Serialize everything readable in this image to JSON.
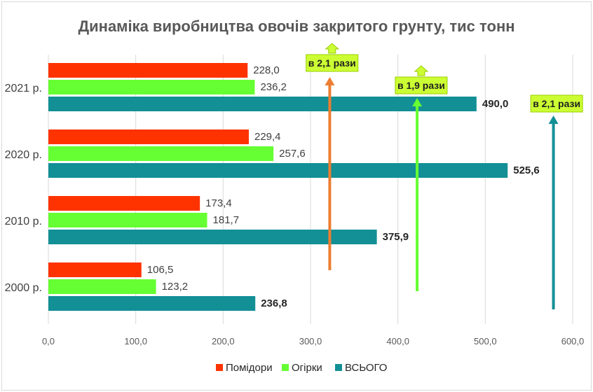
{
  "chart_data": {
    "type": "bar",
    "orientation": "horizontal",
    "title": "Динаміка виробництва овочів закритого грунту, тис тонн",
    "categories": [
      "2021 р.",
      "2020 р.",
      "2010 р.",
      "2000 р."
    ],
    "series": [
      {
        "name": "Помідори",
        "color": "#ff3300",
        "values": [
          228.0,
          229.4,
          173.4,
          106.5
        ],
        "labels": [
          "228,0",
          "229,4",
          "173,4",
          "106,5"
        ]
      },
      {
        "name": "Огірки",
        "color": "#66ff33",
        "values": [
          236.2,
          257.6,
          181.7,
          123.2
        ],
        "labels": [
          "236,2",
          "257,6",
          "181,7",
          "123,2"
        ]
      },
      {
        "name": "ВСЬОГО",
        "color": "#138f96",
        "values": [
          490.0,
          525.6,
          375.9,
          236.8
        ],
        "labels": [
          "490,0",
          "525,6",
          "375,9",
          "236,8"
        ]
      }
    ],
    "xlim": [
      0,
      600
    ],
    "xticks": [
      "0,0",
      "100,0",
      "200,0",
      "300,0",
      "400,0",
      "500,0",
      "600,0"
    ],
    "grid": true,
    "legend_position": "bottom",
    "annotations": [
      {
        "text": "в 2,1 рази",
        "series": "Помідори",
        "color": "#ed7d31",
        "x": 322,
        "box_x": 295
      },
      {
        "text": "в 1,9 рази",
        "series": "Огірки",
        "color": "#66ff33",
        "x": 422,
        "box_x": 397
      },
      {
        "text": "в 2,1 рази",
        "series": "ВСЬОГО",
        "color": "#138f96",
        "x": 578,
        "box_x": 552
      }
    ]
  }
}
